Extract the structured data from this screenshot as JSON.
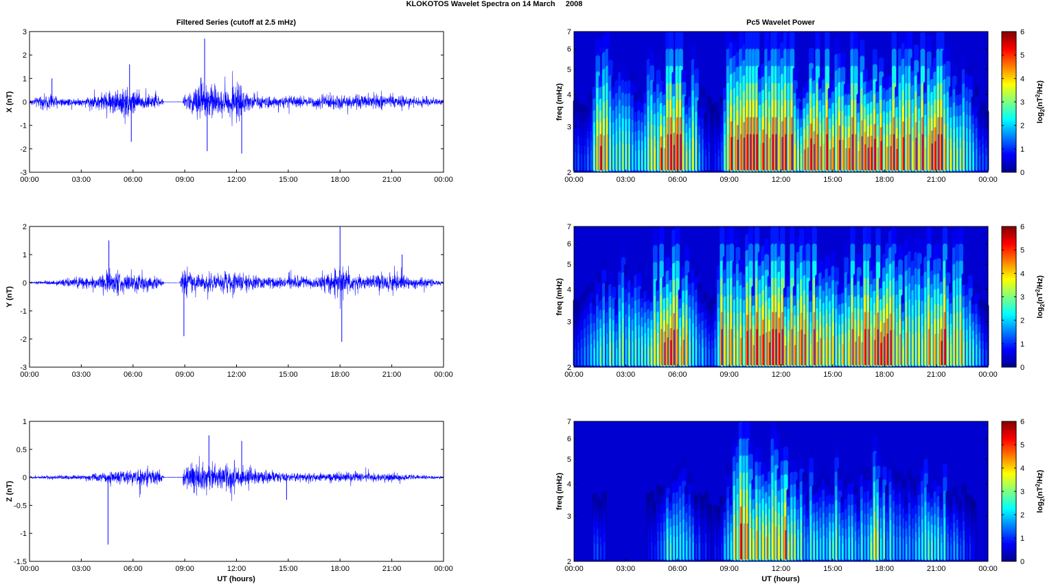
{
  "figure": {
    "title": "KLOKOTOS Wavelet Spectra on 14 March     2008",
    "left_title": "Filtered Series (cutoff at 2.5 mHz)",
    "right_title": "Pc5 Wavelet Power",
    "xlabel": "UT (hours)",
    "colorbar_label": "log2(nT2/Hz)"
  },
  "colors": {
    "series_line": "#0000ff",
    "axes": "#000000",
    "spectrogram_colormap": "jet"
  },
  "chart_data": [
    {
      "type": "line",
      "panel": "X",
      "title": "Filtered Series (cutoff at 2.5 mHz)",
      "ylabel": "X (nT)",
      "xlabel": "",
      "x_ticks": [
        "00:00",
        "03:00",
        "06:00",
        "09:00",
        "12:00",
        "15:00",
        "18:00",
        "21:00",
        "00:00"
      ],
      "xlim_hours": [
        0,
        24
      ],
      "ylim": [
        -3,
        3
      ],
      "y_ticks": [
        "-3",
        "-2",
        "-1",
        "0",
        "1",
        "2",
        "3"
      ],
      "data_gap_hours": [
        7.8,
        8.9
      ],
      "envelope": {
        "x_hours": [
          0,
          1.2,
          2.0,
          3.0,
          4.5,
          5.5,
          6.0,
          6.5,
          7.5,
          7.8,
          8.9,
          9.5,
          10.0,
          10.5,
          11.0,
          11.5,
          12.0,
          12.5,
          13.0,
          14.0,
          15.0,
          16.0,
          17.0,
          18.0,
          19.0,
          20.0,
          21.0,
          22.0,
          23.0,
          24.0
        ],
        "amplitude_nT": [
          0.3,
          0.9,
          0.45,
          0.4,
          1.1,
          1.7,
          1.6,
          0.9,
          0.6,
          0.15,
          0.6,
          1.3,
          2.7,
          1.8,
          1.2,
          1.5,
          2.2,
          1.0,
          0.8,
          0.6,
          0.6,
          0.6,
          0.7,
          0.8,
          0.7,
          0.8,
          0.7,
          0.5,
          0.4,
          0.3
        ]
      },
      "spikes": [
        {
          "x_hours": 1.3,
          "y_nT": 1.0
        },
        {
          "x_hours": 5.8,
          "y_nT": 1.6
        },
        {
          "x_hours": 5.9,
          "y_nT": -1.7
        },
        {
          "x_hours": 10.15,
          "y_nT": 2.7
        },
        {
          "x_hours": 10.3,
          "y_nT": -2.1
        },
        {
          "x_hours": 12.3,
          "y_nT": -2.2
        }
      ]
    },
    {
      "type": "line",
      "panel": "Y",
      "ylabel": "Y (nT)",
      "xlabel": "",
      "x_ticks": [
        "00:00",
        "03:00",
        "06:00",
        "09:00",
        "12:00",
        "15:00",
        "18:00",
        "21:00",
        "00:00"
      ],
      "xlim_hours": [
        0,
        24
      ],
      "ylim": [
        -3,
        2
      ],
      "y_ticks": [
        "-3",
        "-2",
        "-1",
        "0",
        "1",
        "2"
      ],
      "data_gap_hours": [
        7.8,
        8.7
      ],
      "envelope": {
        "x_hours": [
          0,
          1.5,
          2.7,
          4.0,
          4.6,
          5.5,
          6.5,
          7.5,
          7.8,
          8.7,
          9.0,
          9.5,
          10.5,
          11.5,
          12.5,
          13.5,
          15.0,
          16.5,
          17.5,
          18.0,
          18.5,
          19.5,
          21.0,
          22.0,
          23.0,
          24.0
        ],
        "amplitude_nT": [
          0.1,
          0.2,
          0.5,
          0.5,
          1.2,
          0.8,
          0.9,
          0.5,
          0.1,
          0.2,
          1.2,
          0.8,
          0.7,
          0.9,
          0.8,
          0.5,
          0.6,
          0.6,
          0.9,
          1.7,
          0.9,
          0.6,
          0.8,
          0.5,
          0.4,
          0.2
        ]
      },
      "spikes": [
        {
          "x_hours": 4.6,
          "y_nT": 1.5
        },
        {
          "x_hours": 8.95,
          "y_nT": -1.9
        },
        {
          "x_hours": 18.0,
          "y_nT": 2.0
        },
        {
          "x_hours": 18.1,
          "y_nT": -2.1
        },
        {
          "x_hours": 21.6,
          "y_nT": 1.0
        }
      ]
    },
    {
      "type": "line",
      "panel": "Z",
      "ylabel": "Z (nT)",
      "xlabel": "UT (hours)",
      "x_ticks": [
        "00:00",
        "03:00",
        "06:00",
        "09:00",
        "12:00",
        "15:00",
        "18:00",
        "21:00",
        "00:00"
      ],
      "xlim_hours": [
        0,
        24
      ],
      "ylim": [
        -1.5,
        1
      ],
      "y_ticks": [
        "-1.5",
        "-1",
        "-0.5",
        "0",
        "0.5",
        "1"
      ],
      "data_gap_hours": [
        7.8,
        8.9
      ],
      "envelope": {
        "x_hours": [
          0,
          1.5,
          3.0,
          4.5,
          5.5,
          6.5,
          7.5,
          7.8,
          8.9,
          9.5,
          10.5,
          11.5,
          12.5,
          13.5,
          15.0,
          16.5,
          18.0,
          19.5,
          21.0,
          22.5,
          24.0
        ],
        "amplitude_nT": [
          0.05,
          0.1,
          0.1,
          0.25,
          0.3,
          0.4,
          0.3,
          0.03,
          0.4,
          0.7,
          0.6,
          0.55,
          0.4,
          0.3,
          0.2,
          0.2,
          0.25,
          0.2,
          0.2,
          0.1,
          0.05
        ]
      },
      "spikes": [
        {
          "x_hours": 4.55,
          "y_nT": -1.2
        },
        {
          "x_hours": 10.4,
          "y_nT": 0.75
        },
        {
          "x_hours": 12.3,
          "y_nT": 0.65
        },
        {
          "x_hours": 14.9,
          "y_nT": -0.4
        }
      ]
    },
    {
      "type": "heatmap",
      "panel": "X-power",
      "title": "Pc5 Wavelet Power",
      "ylabel": "freq (mHz)",
      "y_scale": "log",
      "ylim_mHz": [
        2,
        7
      ],
      "y_ticks": [
        "2",
        "3",
        "4",
        "5",
        "6",
        "7"
      ],
      "xlim_hours": [
        0,
        24
      ],
      "x_ticks": [
        "00:00",
        "03:00",
        "06:00",
        "09:00",
        "12:00",
        "15:00",
        "18:00",
        "21:00",
        "00:00"
      ],
      "colorbar": {
        "range": [
          0,
          6
        ],
        "ticks": [
          "0",
          "1",
          "2",
          "3",
          "4",
          "5",
          "6"
        ],
        "label": "log2(nT2/Hz)"
      },
      "activity": {
        "hours": [
          0,
          1,
          1.5,
          2.5,
          4,
          5,
          5.5,
          6,
          6.5,
          7,
          7.8,
          8.5,
          9,
          9.5,
          10,
          10.5,
          11,
          11.5,
          12,
          12.5,
          13,
          14,
          15,
          16,
          17,
          18,
          19,
          20,
          21,
          21.5,
          22,
          23,
          24
        ],
        "log2_power": [
          1.2,
          1.5,
          6.0,
          3.0,
          3.0,
          4.5,
          6.0,
          6.0,
          5.0,
          4.0,
          1.0,
          1.0,
          5.5,
          6.0,
          6.0,
          6.0,
          6.0,
          6.0,
          6.0,
          5.5,
          4.5,
          5.5,
          5.5,
          5.0,
          5.5,
          5.5,
          5.0,
          5.5,
          6.0,
          5.5,
          4.0,
          3.0,
          1.0
        ]
      }
    },
    {
      "type": "heatmap",
      "panel": "Y-power",
      "ylabel": "freq (mHz)",
      "y_scale": "log",
      "ylim_mHz": [
        2,
        7
      ],
      "y_ticks": [
        "2",
        "3",
        "4",
        "5",
        "6",
        "7"
      ],
      "xlim_hours": [
        0,
        24
      ],
      "x_ticks": [
        "00:00",
        "03:00",
        "06:00",
        "09:00",
        "12:00",
        "15:00",
        "18:00",
        "21:00",
        "00:00"
      ],
      "colorbar": {
        "range": [
          0,
          6
        ],
        "ticks": [
          "0",
          "1",
          "2",
          "3",
          "4",
          "5",
          "6"
        ],
        "label": "log2(nT2/Hz)"
      },
      "activity": {
        "hours": [
          0,
          1,
          1.5,
          2.5,
          4,
          5,
          5.5,
          6,
          6.5,
          7,
          8,
          8.7,
          9,
          9.5,
          10,
          10.5,
          11,
          11.5,
          12,
          12.5,
          13,
          14,
          15,
          16,
          17,
          17.5,
          18,
          19,
          20,
          21,
          21.5,
          22,
          22.5,
          23,
          24
        ],
        "log2_power": [
          1.0,
          2.0,
          3.0,
          3.0,
          3.0,
          4.0,
          6.0,
          6.0,
          5.0,
          3.0,
          1.0,
          6.0,
          5.0,
          4.0,
          5.0,
          6.0,
          5.5,
          6.0,
          6.0,
          5.0,
          4.5,
          5.0,
          4.0,
          4.5,
          5.0,
          6.0,
          6.0,
          4.0,
          4.0,
          5.0,
          6.0,
          4.0,
          4.5,
          3.0,
          1.0
        ]
      }
    },
    {
      "type": "heatmap",
      "panel": "Z-power",
      "ylabel": "freq (mHz)",
      "y_scale": "log",
      "ylim_mHz": [
        2,
        7
      ],
      "y_ticks": [
        "2",
        "3",
        "4",
        "5",
        "6",
        "7"
      ],
      "xlim_hours": [
        0,
        24
      ],
      "x_ticks": [
        "00:00",
        "03:00",
        "06:00",
        "09:00",
        "12:00",
        "15:00",
        "18:00",
        "21:00",
        "00:00"
      ],
      "colorbar": {
        "range": [
          0,
          6
        ],
        "ticks": [
          "0",
          "1",
          "2",
          "3",
          "4",
          "5",
          "6"
        ],
        "label": "log2(nT2/Hz)"
      },
      "activity": {
        "hours": [
          0,
          1,
          1.3,
          2,
          3,
          4,
          5,
          5.7,
          6.5,
          7.5,
          8.5,
          9.3,
          9.8,
          10.5,
          11.2,
          12,
          12.5,
          13.5,
          14.5,
          15.5,
          16.5,
          17.5,
          18.2,
          19,
          20,
          21,
          21.8,
          22.5,
          23.5,
          24
        ],
        "log2_power": [
          0.2,
          0.5,
          2.0,
          0.5,
          0.4,
          0.5,
          1.5,
          3.5,
          2.5,
          1.0,
          0.8,
          4.0,
          5.5,
          4.5,
          4.0,
          5.5,
          4.0,
          2.5,
          2.5,
          3.0,
          2.0,
          3.5,
          2.5,
          2.0,
          2.0,
          3.5,
          2.0,
          1.5,
          0.5,
          0.2
        ]
      }
    }
  ]
}
